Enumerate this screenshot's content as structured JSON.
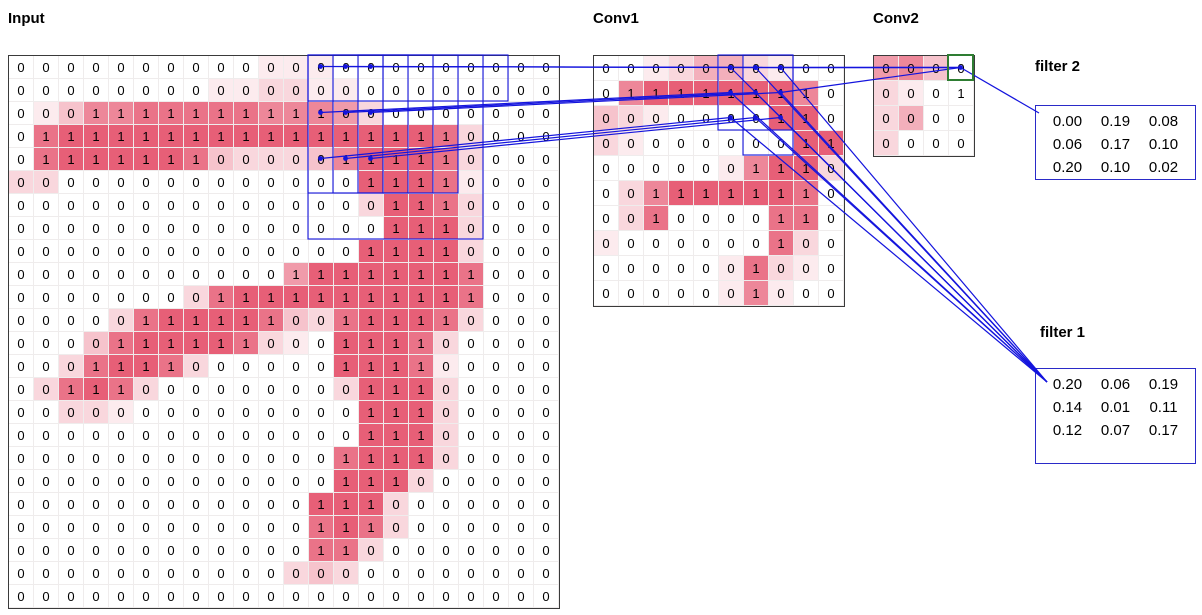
{
  "labels": {
    "input": "Input",
    "conv1": "Conv1",
    "conv2": "Conv2"
  },
  "colors": {
    "line": "#1414dd",
    "heat_strong": "#e75f77",
    "grid_border": "#3a3a3a",
    "green_box": "#2e7d32",
    "filter_border": "#2a2ac8"
  },
  "grids": {
    "input": {
      "rows": 24,
      "cols": 22,
      "display": [
        "0000000000000000000000",
        "0000000000000000000000",
        "0001111111111000000000",
        "0111111111111111110000",
        "0111111100000111110000",
        "0000000000000011110000",
        "0000000000000001110000",
        "0000000000000001110000",
        "0000000000000011110000",
        "0000000000011111111000",
        "0000000011111111111000",
        "0000011111100111110000",
        "0000111111000111100000",
        "0001111000000111100000",
        "0011100000000011100000",
        "0000000000000011100000",
        "0000000000000011100000",
        "0000000000000111100000",
        "0000000000000111000000",
        "0000000000001110000000",
        "0000000000001110000000",
        "0000000000001100000000",
        "0000000000000000000000",
        "0000000000000000000000"
      ],
      "heat": [
        "0000000000111000000000",
        "0000000011221100000000",
        "0136677777666520000000",
        "0788888888888888872000",
        "0788888732223688872000",
        "2200000000000088871000",
        "0000000000000028872000",
        "0000000000000008882000",
        "0000000000000088882000",
        "0000000000058888887000",
        "0000000278888888887000",
        "0000278888732788872000",
        "0003788887210888720000",
        "0027887200000888710000",
        "0278720000000288820000",
        "0022100000000088820000",
        "0000000000000088820000",
        "0000000000000788820000",
        "0000000000000888200000",
        "0000000000008882000000",
        "0000000000007872000000",
        "0000000000007720000000",
        "0000000000023200000000",
        "0000000000000000000000"
      ]
    },
    "conv1": {
      "rows": 10,
      "cols": 10,
      "display": [
        "0000000000",
        "0111111110",
        "0000000110",
        "0000000011",
        "0000001110",
        "0011111110",
        "0010000110",
        "0000000100",
        "0000001000",
        "0000001000"
      ],
      "heat": [
        "0012442100",
        "0688888860",
        "3210000880",
        "2100000088",
        "0000016882",
        "0268888870",
        "0270000770",
        "1000000720",
        "0000017210",
        "0000016100"
      ]
    },
    "conv2": {
      "rows": 4,
      "cols": 4,
      "display": [
        "0000",
        "0001",
        "0000",
        "0000"
      ],
      "heat": [
        "5630",
        "2100",
        "2400",
        "2000"
      ]
    }
  },
  "filters": {
    "filter2": {
      "label": "filter 2",
      "values": [
        [
          "0.00",
          "0.19",
          "0.08"
        ],
        [
          "0.06",
          "0.17",
          "0.10"
        ],
        [
          "0.20",
          "0.10",
          "0.02"
        ]
      ]
    },
    "filter1": {
      "label": "filter 1",
      "values": [
        [
          "0.20",
          "0.06",
          "0.19"
        ],
        [
          "0.14",
          "0.01",
          "0.11"
        ],
        [
          "0.12",
          "0.07",
          "0.17"
        ]
      ]
    }
  },
  "overlays": {
    "input_rects": [
      [
        0,
        12,
        8,
        7
      ],
      [
        0,
        12,
        6,
        3
      ],
      [
        0,
        13,
        6,
        3
      ],
      [
        0,
        14,
        6,
        3
      ],
      [
        0,
        15,
        6,
        3
      ],
      [
        0,
        12,
        2,
        8
      ]
    ],
    "conv1_rects": [
      [
        0,
        5,
        3,
        3
      ],
      [
        0,
        6,
        4,
        2
      ]
    ],
    "conv2_green_cell": [
      0,
      3
    ],
    "connections": {
      "input_to_conv1": {
        "input_rows": [
          0,
          2,
          4
        ],
        "input_cols": [
          12,
          13,
          14
        ],
        "conv1_rows": [
          0,
          1,
          2
        ],
        "conv1_cols": [
          5,
          6,
          7
        ]
      },
      "conv1_to_filter1": {
        "rows": [
          0,
          1,
          2
        ],
        "cols": [
          5,
          6,
          7
        ]
      },
      "conv1_to_conv2": {
        "cells": [
          [
            0,
            5
          ],
          [
            0,
            6
          ],
          [
            0,
            7
          ],
          [
            1,
            7
          ]
        ],
        "target": [
          0,
          3
        ]
      },
      "conv2_to_filter2": {
        "cell": [
          0,
          3
        ]
      }
    }
  }
}
